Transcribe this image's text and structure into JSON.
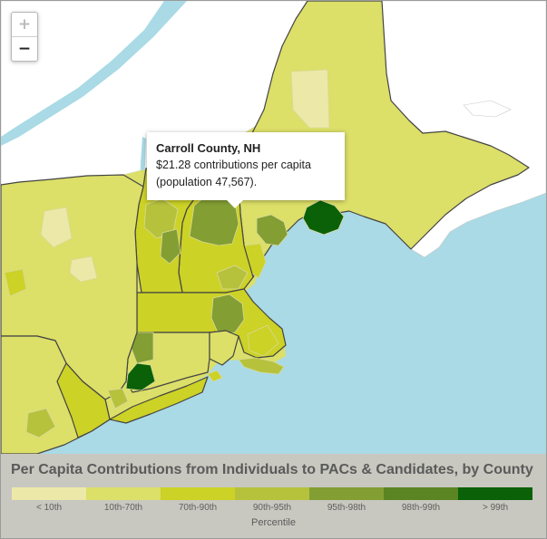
{
  "zoom": {
    "in_label": "+",
    "out_label": "−",
    "in_enabled": false
  },
  "tooltip": {
    "title": "Carroll County, NH",
    "line1": "$21.28 contributions per capita",
    "line2": "(population 47,567)."
  },
  "legend": {
    "title": "Per Capita Contributions from Individuals to PACs & Candidates, by County",
    "axis_label": "Percentile",
    "bins": [
      {
        "label": "< 10th",
        "color": "#ece9a8"
      },
      {
        "label": "10th-70th",
        "color": "#dcdf68"
      },
      {
        "label": "70th-90th",
        "color": "#ccd226"
      },
      {
        "label": "90th-95th",
        "color": "#b6c23c"
      },
      {
        "label": "95th-98th",
        "color": "#839e33"
      },
      {
        "label": "98th-99th",
        "color": "#5a8522"
      },
      {
        "label": "> 99th",
        "color": "#0a6108"
      }
    ]
  },
  "map_colors": {
    "ocean": "#a9dae5",
    "canada": "#ffffff",
    "state_border": "#444444",
    "county_border": "#d9d99a"
  },
  "regions": [
    {
      "name": "maine",
      "bin": 1
    },
    {
      "name": "aroostook-north",
      "bin": 1
    },
    {
      "name": "piscataquis",
      "bin": 0
    },
    {
      "name": "washington-county-me",
      "bin": 6
    },
    {
      "name": "hancock-county-me",
      "bin": 1
    },
    {
      "name": "cumberland-county-me",
      "bin": 4
    },
    {
      "name": "york-county-me",
      "bin": 2
    },
    {
      "name": "new-hampshire",
      "bin": 2
    },
    {
      "name": "carroll-county-nh",
      "bin": 4
    },
    {
      "name": "grafton-county-nh",
      "bin": 4
    },
    {
      "name": "vermont",
      "bin": 2
    },
    {
      "name": "windsor-county-vt",
      "bin": 3
    },
    {
      "name": "massachusetts",
      "bin": 2
    },
    {
      "name": "middlesex-county-ma",
      "bin": 4
    },
    {
      "name": "barnstable-county-ma",
      "bin": 3
    },
    {
      "name": "plymouth-county-ma",
      "bin": 2
    },
    {
      "name": "connecticut",
      "bin": 1
    },
    {
      "name": "fairfield-county-ct",
      "bin": 6
    },
    {
      "name": "litchfield-county-ct",
      "bin": 4
    },
    {
      "name": "rhode-island",
      "bin": 1
    },
    {
      "name": "new-york",
      "bin": 1
    },
    {
      "name": "adirondacks-ny",
      "bin": 0
    },
    {
      "name": "westchester-county-ny",
      "bin": 4
    },
    {
      "name": "pennsylvania",
      "bin": 1
    },
    {
      "name": "new-jersey",
      "bin": 2
    },
    {
      "name": "long-island",
      "bin": 2
    }
  ]
}
